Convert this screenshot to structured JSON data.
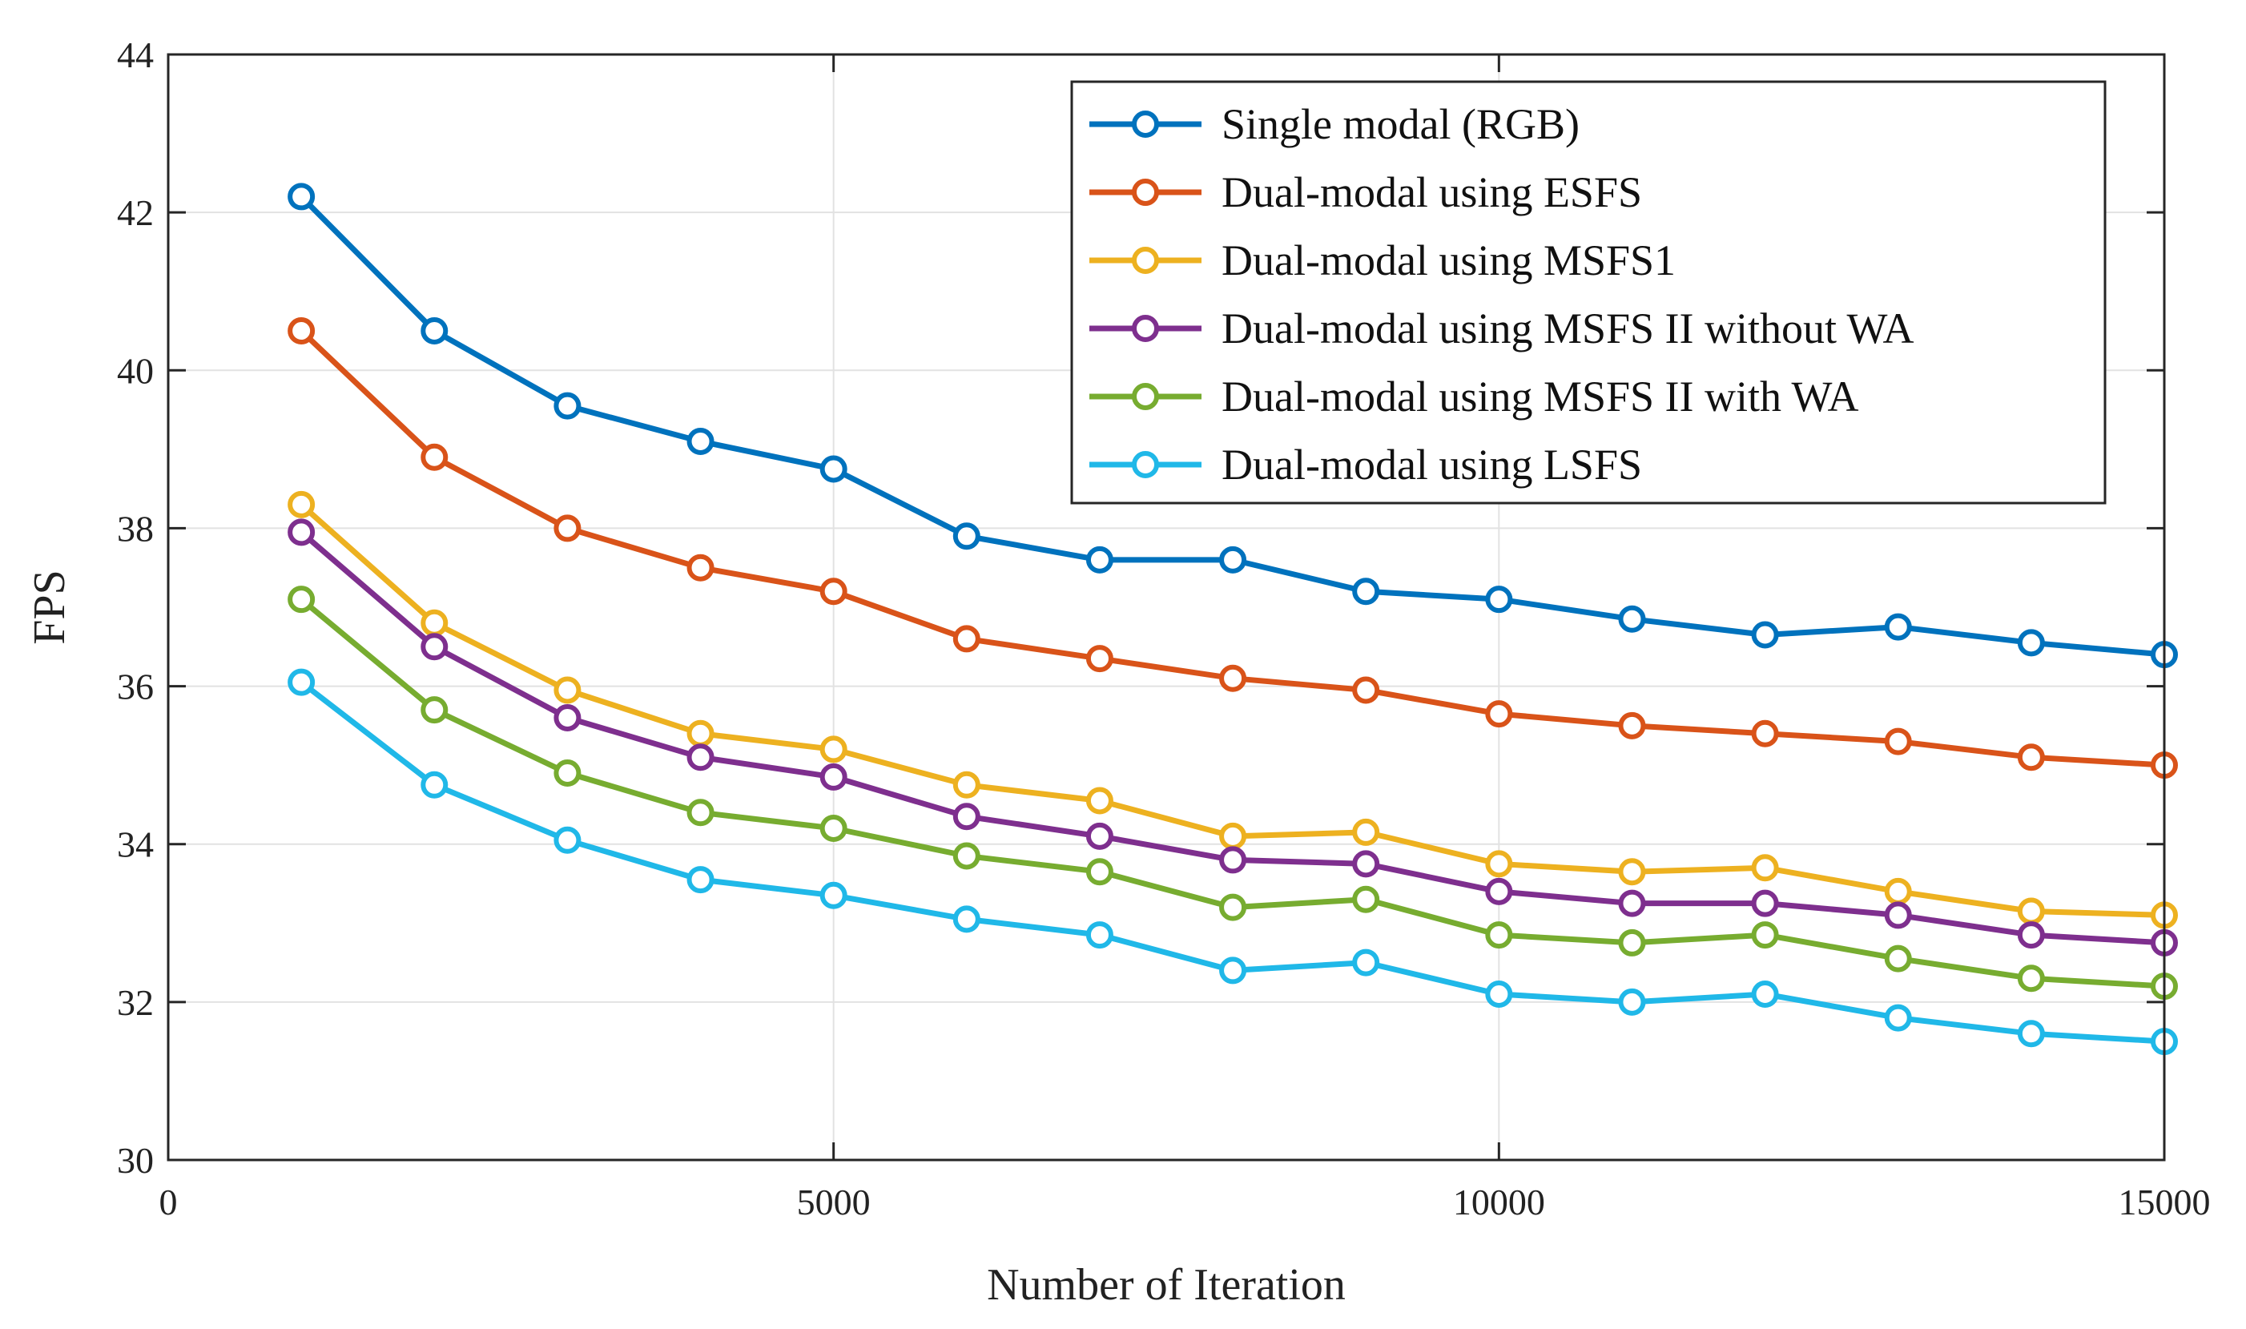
{
  "chart_data": {
    "type": "line",
    "title": "",
    "xlabel": "Number of Iteration",
    "ylabel": "FPS",
    "xlim": [
      0,
      15000
    ],
    "ylim": [
      30,
      44
    ],
    "xticks": [
      0,
      5000,
      10000,
      15000
    ],
    "yticks": [
      30,
      32,
      34,
      36,
      38,
      40,
      42,
      44
    ],
    "xtick_labels": [
      "0",
      "5000",
      "10000",
      "15000"
    ],
    "ytick_labels": [
      "30",
      "32",
      "34",
      "36",
      "38",
      "40",
      "42",
      "44"
    ],
    "grid": true,
    "legend_position": "top-right",
    "x": [
      1000,
      2000,
      3000,
      4000,
      5000,
      6000,
      7000,
      8000,
      9000,
      10000,
      11000,
      12000,
      13000,
      14000,
      15000
    ],
    "series": [
      {
        "name": "Single modal (RGB)",
        "color": "#0072BD",
        "values": [
          42.2,
          40.5,
          39.55,
          39.1,
          38.75,
          37.9,
          37.6,
          37.6,
          37.2,
          37.1,
          36.85,
          36.65,
          36.75,
          36.55,
          36.4
        ]
      },
      {
        "name": "Dual-modal using ESFS",
        "color": "#D95319",
        "values": [
          40.5,
          38.9,
          38.0,
          37.5,
          37.2,
          36.6,
          36.35,
          36.1,
          35.95,
          35.65,
          35.5,
          35.4,
          35.3,
          35.1,
          35.0
        ]
      },
      {
        "name": "Dual-modal using MSFS1",
        "color": "#EDB120",
        "values": [
          38.3,
          36.8,
          35.95,
          35.4,
          35.2,
          34.75,
          34.55,
          34.1,
          34.15,
          33.75,
          33.65,
          33.7,
          33.4,
          33.15,
          33.1
        ]
      },
      {
        "name": "Dual-modal using MSFS II without WA",
        "color": "#7E2F8E",
        "values": [
          37.95,
          36.5,
          35.6,
          35.1,
          34.85,
          34.35,
          34.1,
          33.8,
          33.75,
          33.4,
          33.25,
          33.25,
          33.1,
          32.85,
          32.75
        ]
      },
      {
        "name": "Dual-modal using MSFS II with WA",
        "color": "#77AC30",
        "values": [
          37.1,
          35.7,
          34.9,
          34.4,
          34.2,
          33.85,
          33.65,
          33.2,
          33.3,
          32.85,
          32.75,
          32.85,
          32.55,
          32.3,
          32.2
        ]
      },
      {
        "name": "Dual-modal using LSFS",
        "color": "#20B8E8",
        "values": [
          36.05,
          34.75,
          34.05,
          33.55,
          33.35,
          33.05,
          32.85,
          32.4,
          32.5,
          32.1,
          32.0,
          32.1,
          31.8,
          31.6,
          31.5
        ]
      }
    ]
  }
}
